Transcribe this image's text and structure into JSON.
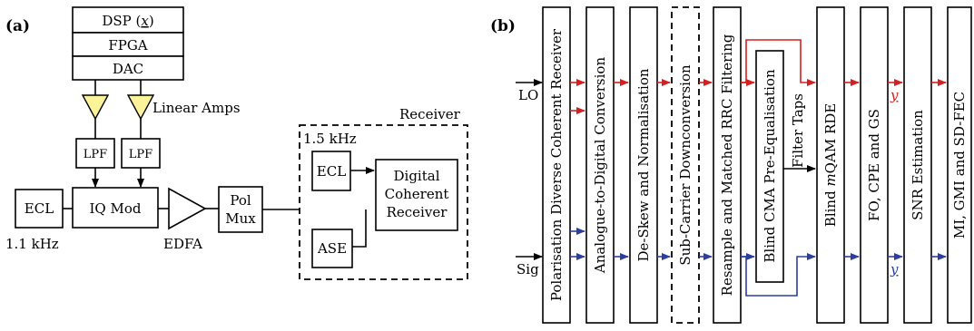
{
  "panel_a": {
    "tag": "(a)",
    "dsp": "DSP (x)",
    "dsp_prefix": "DSP (",
    "dsp_var": "x",
    "dsp_suffix": ")",
    "fpga": "FPGA",
    "dac": "DAC",
    "linear_amps": "Linear Amps",
    "lpf_left": "LPF",
    "lpf_right": "LPF",
    "ecl_tx": "ECL",
    "ecl_tx_linewidth": "1.1 kHz",
    "iq_mod": "IQ Mod",
    "edfa": "EDFA",
    "pol_mux_line1": "Pol",
    "pol_mux_line2": "Mux",
    "receiver_label": "Receiver",
    "ecl_rx_linewidth": "1.5 kHz",
    "ecl_rx": "ECL",
    "ase": "ASE",
    "dcr_line1": "Digital",
    "dcr_line2": "Coherent",
    "dcr_line3": "Receiver"
  },
  "panel_b": {
    "tag": "(b)",
    "lo_label": "LO",
    "sig_label": "Sig",
    "stages": [
      "Polarisation Diverse Coherent Receiver",
      "Analogue-to-Digital Conversion",
      "De-Skew and Normalisation",
      "Sub-Carrier Downconversion",
      "Resample and Matched RRC Filtering",
      "Blind CMA Pre-Equalisation",
      "Blind mQAM RDE",
      "FO, CPE and GS",
      "SNR Estimation",
      "MI, GMI and SD-FEC"
    ],
    "rde_prefix": "Blind ",
    "rde_var": "m",
    "rde_suffix": "QAM RDE",
    "filter_taps": "Filter Taps",
    "y_red": "y",
    "y_blue": "y"
  },
  "colors": {
    "red_path": "#d42020",
    "blue_path": "#2b3f9e",
    "amplifier": "#fbf39a"
  }
}
